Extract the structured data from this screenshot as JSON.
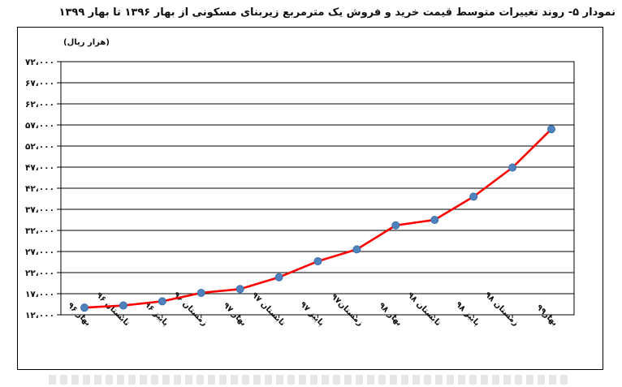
{
  "chart_data": {
    "type": "line",
    "title": "نمودار ۵- روند تغییرات متوسط قیمت خرید و فروش یک مترمربع زیربنای مسکونی از بهار ۱۳۹۶ تا بهار ۱۳۹۹",
    "ylabel": "(هزار ریال)",
    "xlabel": "",
    "ylim": [
      12000,
      72000
    ],
    "yticks": [
      12000,
      17000,
      22000,
      27000,
      32000,
      37000,
      42000,
      47000,
      52000,
      57000,
      62000,
      67000,
      72000
    ],
    "ytick_labels": [
      "۱۲،۰۰۰",
      "۱۷،۰۰۰",
      "۲۲،۰۰۰",
      "۲۷،۰۰۰",
      "۳۲،۰۰۰",
      "۳۷،۰۰۰",
      "۴۲،۰۰۰",
      "۴۷،۰۰۰",
      "۵۲،۰۰۰",
      "۵۷،۰۰۰",
      "۶۲،۰۰۰",
      "۶۷،۰۰۰",
      "۷۲،۰۰۰"
    ],
    "categories": [
      "بهار ۹۶",
      "تابستان ۹۶",
      "پاییز ۹۶",
      "زمستان ۹۶",
      "بهار ۹۷",
      "تابستان ۹۷",
      "پاییز ۹۷",
      "زمستان۹۷",
      "بهار ۹۸",
      "تابستان ۹۸",
      "پاییز ۹۸",
      "زمستان ۹۸",
      "بهار۹۹"
    ],
    "series": [
      {
        "values": [
          13700,
          14200,
          15200,
          17200,
          18100,
          20900,
          24700,
          27500,
          33200,
          34500,
          40000,
          46900,
          56000
        ]
      }
    ],
    "line_color": "#ff0000",
    "marker_color": "#4f81bd",
    "grid": true,
    "legend": "none"
  }
}
